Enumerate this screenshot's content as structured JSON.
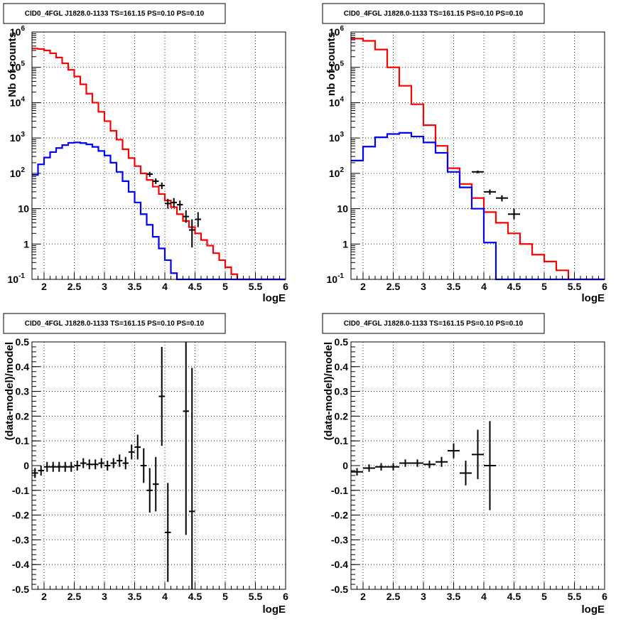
{
  "chart_data": [
    {
      "type": "line",
      "title": "CID0_4FGL J1828.0-1133 TS=161.15 PS=0.10 PS=0.10",
      "xlabel": "logE",
      "ylabel": "Nb of counts",
      "xlim": [
        1.8,
        6.0
      ],
      "ylim": [
        0.1,
        1000000
      ],
      "yscale": "log",
      "grid": true,
      "x_ticks": [
        "2",
        "2.5",
        "3",
        "3.5",
        "4",
        "4.5",
        "5",
        "5.5",
        "6"
      ],
      "y_ticks": [
        "10^-1",
        "1",
        "10",
        "10^2",
        "10^3",
        "10^4",
        "10^5",
        "10^6"
      ],
      "bin_edges": [
        1.8,
        1.9,
        2.0,
        2.1,
        2.2,
        2.3,
        2.4,
        2.5,
        2.6,
        2.7,
        2.8,
        2.9,
        3.0,
        3.1,
        3.2,
        3.3,
        3.4,
        3.5,
        3.6,
        3.7,
        3.8,
        3.9,
        4.0,
        4.1,
        4.2,
        4.3,
        4.4,
        4.5,
        4.6,
        4.7,
        4.8,
        4.9,
        5.0,
        5.1,
        5.2,
        5.3,
        5.4,
        5.5,
        5.6,
        5.7,
        5.8,
        5.9,
        6.0
      ],
      "series": [
        {
          "color": "#ff0000",
          "style": "step",
          "values": [
            340000,
            330000,
            300000,
            250000,
            190000,
            130000,
            85000,
            55000,
            33000,
            18000,
            10000,
            5500,
            3000,
            1600,
            900,
            480,
            270,
            160,
            100,
            65,
            42,
            26,
            17,
            11,
            7,
            4.5,
            3,
            2,
            1.3,
            0.9,
            0.55,
            0.35,
            0.22,
            0.14,
            0.1,
            0.1,
            0.1,
            0.1,
            0.1,
            0.1,
            0.1,
            0.1
          ]
        },
        {
          "color": "#0000ff",
          "style": "step",
          "values": [
            90,
            180,
            280,
            400,
            520,
            630,
            730,
            750,
            720,
            660,
            560,
            430,
            320,
            200,
            110,
            60,
            30,
            15,
            7,
            3.5,
            1.6,
            0.75,
            0.35,
            0.15,
            0.1,
            0.1,
            0.1,
            0.1,
            0.1,
            0.1,
            0.1,
            0.1,
            0.1,
            0.1,
            0.1,
            0.1,
            0.1,
            0.1,
            0.1,
            0.1,
            0.1,
            0.1
          ]
        },
        {
          "color": "#000000",
          "style": "points",
          "points": [
            {
              "x": 3.75,
              "y": 95,
              "ylo": 80,
              "yhi": 110,
              "xerr": 0.05
            },
            {
              "x": 3.85,
              "y": 60,
              "ylo": 50,
              "yhi": 72,
              "xerr": 0.05
            },
            {
              "x": 3.95,
              "y": 45,
              "ylo": 36,
              "yhi": 55,
              "xerr": 0.05
            },
            {
              "x": 4.05,
              "y": 14,
              "ylo": 10,
              "yhi": 19,
              "xerr": 0.05
            },
            {
              "x": 4.15,
              "y": 15,
              "ylo": 11,
              "yhi": 20,
              "xerr": 0.05
            },
            {
              "x": 4.25,
              "y": 13,
              "ylo": 9,
              "yhi": 17,
              "xerr": 0.05
            },
            {
              "x": 4.35,
              "y": 6,
              "ylo": 4,
              "yhi": 9,
              "xerr": 0.05
            },
            {
              "x": 4.45,
              "y": 2.5,
              "ylo": 0.8,
              "yhi": 5,
              "xerr": 0.05
            },
            {
              "x": 4.55,
              "y": 5,
              "ylo": 3,
              "yhi": 8,
              "xerr": 0.05
            }
          ]
        }
      ]
    },
    {
      "type": "line",
      "title": "CID0_4FGL J1828.0-1133 TS=161.15 PS=0.10 PS=0.10",
      "xlabel": "logE",
      "ylabel": "nb of counts",
      "xlim": [
        1.8,
        6.0
      ],
      "ylim": [
        0.1,
        1000000
      ],
      "yscale": "log",
      "grid": true,
      "x_ticks": [
        "2",
        "2.5",
        "3",
        "3.5",
        "4",
        "4.5",
        "5",
        "5.5",
        "6"
      ],
      "y_ticks": [
        "10^-1",
        "1",
        "10",
        "10^2",
        "10^3",
        "10^4",
        "10^5",
        "10^6"
      ],
      "bin_edges": [
        1.8,
        2.0,
        2.2,
        2.4,
        2.6,
        2.8,
        3.0,
        3.2,
        3.4,
        3.6,
        3.8,
        4.0,
        4.2,
        4.4,
        4.6,
        4.8,
        5.0,
        5.2,
        5.4,
        5.6,
        5.8,
        6.0
      ],
      "series": [
        {
          "color": "#ff0000",
          "style": "step",
          "values": [
            650000,
            560000,
            320000,
            100000,
            30000,
            9000,
            2300,
            600,
            140,
            50,
            20,
            8,
            4,
            2,
            1,
            0.5,
            0.32,
            0.18,
            0.1,
            0.1,
            0.1
          ]
        },
        {
          "color": "#0000ff",
          "style": "step",
          "values": [
            230,
            570,
            1050,
            1300,
            1400,
            1100,
            750,
            380,
            110,
            40,
            10,
            1.1,
            0.1,
            0.1,
            0.1,
            0.1,
            0.1,
            0.1,
            0.1,
            0.1,
            0.1
          ]
        },
        {
          "color": "#000000",
          "style": "points",
          "points": [
            {
              "x": 3.9,
              "y": 110,
              "ylo": 100,
              "yhi": 120,
              "xerr": 0.1
            },
            {
              "x": 4.1,
              "y": 30,
              "ylo": 25,
              "yhi": 35,
              "xerr": 0.1
            },
            {
              "x": 4.3,
              "y": 20,
              "ylo": 16,
              "yhi": 24,
              "xerr": 0.1
            },
            {
              "x": 4.5,
              "y": 7,
              "ylo": 5,
              "yhi": 10,
              "xerr": 0.1
            }
          ]
        }
      ]
    },
    {
      "type": "scatter",
      "title": "CID0_4FGL J1828.0-1133 TS=161.15 PS=0.10 PS=0.10",
      "xlabel": "logE",
      "ylabel": "(data-model)/model",
      "xlim": [
        1.8,
        6.0
      ],
      "ylim": [
        -0.5,
        0.5
      ],
      "grid": true,
      "x_ticks": [
        "2",
        "2.5",
        "3",
        "3.5",
        "4",
        "4.5",
        "5",
        "5.5",
        "6"
      ],
      "y_ticks": [
        "-0.5",
        "-0.4",
        "-0.3",
        "-0.2",
        "-0.1",
        "0",
        "0.1",
        "0.2",
        "0.3",
        "0.4",
        "0.5"
      ],
      "series": [
        {
          "color": "#000000",
          "points": [
            {
              "x": 1.85,
              "y": -0.03,
              "err": 0.02
            },
            {
              "x": 1.95,
              "y": -0.02,
              "err": 0.02
            },
            {
              "x": 2.05,
              "y": -0.005,
              "err": 0.02
            },
            {
              "x": 2.15,
              "y": -0.005,
              "err": 0.02
            },
            {
              "x": 2.25,
              "y": -0.005,
              "err": 0.02
            },
            {
              "x": 2.35,
              "y": -0.005,
              "err": 0.02
            },
            {
              "x": 2.45,
              "y": -0.005,
              "err": 0.02
            },
            {
              "x": 2.55,
              "y": 0.0,
              "err": 0.02
            },
            {
              "x": 2.65,
              "y": 0.01,
              "err": 0.02
            },
            {
              "x": 2.75,
              "y": 0.005,
              "err": 0.02
            },
            {
              "x": 2.85,
              "y": 0.005,
              "err": 0.02
            },
            {
              "x": 2.95,
              "y": 0.01,
              "err": 0.02
            },
            {
              "x": 3.05,
              "y": 0.0,
              "err": 0.02
            },
            {
              "x": 3.15,
              "y": 0.01,
              "err": 0.02
            },
            {
              "x": 3.25,
              "y": 0.02,
              "err": 0.025
            },
            {
              "x": 3.35,
              "y": 0.01,
              "err": 0.025
            },
            {
              "x": 3.45,
              "y": 0.055,
              "err": 0.03
            },
            {
              "x": 3.55,
              "y": 0.075,
              "err": 0.05
            },
            {
              "x": 3.65,
              "y": 0.0,
              "err": 0.07
            },
            {
              "x": 3.75,
              "y": -0.1,
              "err": 0.09
            },
            {
              "x": 3.85,
              "y": -0.075,
              "err": 0.11
            },
            {
              "x": 3.95,
              "y": 0.28,
              "err": 0.2
            },
            {
              "x": 4.05,
              "y": -0.27,
              "err": 0.2
            },
            {
              "x": 4.35,
              "y": 0.22,
              "err": 0.5
            },
            {
              "x": 4.45,
              "y": -0.185,
              "err": 0.58
            }
          ]
        }
      ]
    },
    {
      "type": "scatter",
      "title": "CID0_4FGL J1828.0-1133 TS=161.15 PS=0.10 PS=0.10",
      "xlabel": "logE",
      "ylabel": "(data-model)/model",
      "xlim": [
        1.8,
        6.0
      ],
      "ylim": [
        -0.5,
        0.5
      ],
      "grid": true,
      "x_ticks": [
        "2",
        "2.5",
        "3",
        "3.5",
        "4",
        "4.5",
        "5",
        "5.5",
        "6"
      ],
      "y_ticks": [
        "-0.5",
        "-0.4",
        "-0.3",
        "-0.2",
        "-0.1",
        "0",
        "0.1",
        "0.2",
        "0.3",
        "0.4",
        "0.5"
      ],
      "series": [
        {
          "color": "#000000",
          "points": [
            {
              "x": 1.9,
              "y": -0.025,
              "err": 0.015
            },
            {
              "x": 2.1,
              "y": -0.01,
              "err": 0.015
            },
            {
              "x": 2.3,
              "y": -0.005,
              "err": 0.015
            },
            {
              "x": 2.5,
              "y": -0.005,
              "err": 0.015
            },
            {
              "x": 2.7,
              "y": 0.01,
              "err": 0.015
            },
            {
              "x": 2.9,
              "y": 0.01,
              "err": 0.015
            },
            {
              "x": 3.1,
              "y": 0.005,
              "err": 0.015
            },
            {
              "x": 3.3,
              "y": 0.015,
              "err": 0.02
            },
            {
              "x": 3.5,
              "y": 0.06,
              "err": 0.03
            },
            {
              "x": 3.7,
              "y": -0.03,
              "err": 0.05
            },
            {
              "x": 3.9,
              "y": 0.045,
              "err": 0.1
            },
            {
              "x": 4.1,
              "y": 0.0,
              "err": 0.18
            }
          ]
        }
      ]
    }
  ]
}
